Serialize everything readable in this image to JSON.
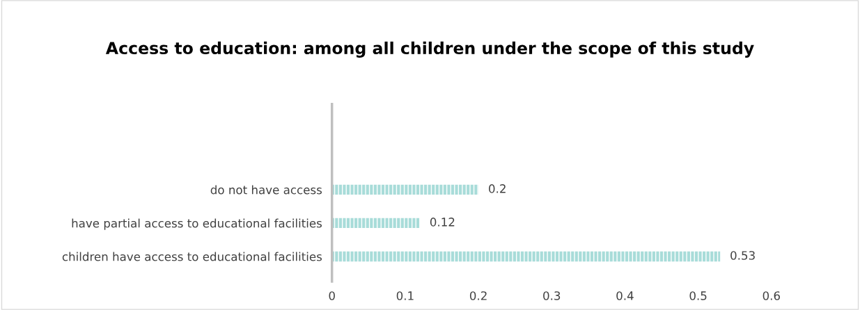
{
  "chart_data": {
    "type": "bar",
    "orientation": "horizontal",
    "title": "Access to education: among all children under the scope of this study",
    "categories": [
      "do not have access",
      "have partial access to educational facilities",
      "children have access to educational facilities"
    ],
    "values": [
      0.2,
      0.12,
      0.53
    ],
    "color": "#a8dcd9",
    "xlim": [
      0,
      0.6
    ],
    "xticks": [
      0,
      0.1,
      0.2,
      0.3,
      0.4,
      0.5,
      0.6
    ],
    "data_labels": true,
    "grid": false,
    "legend": false
  }
}
